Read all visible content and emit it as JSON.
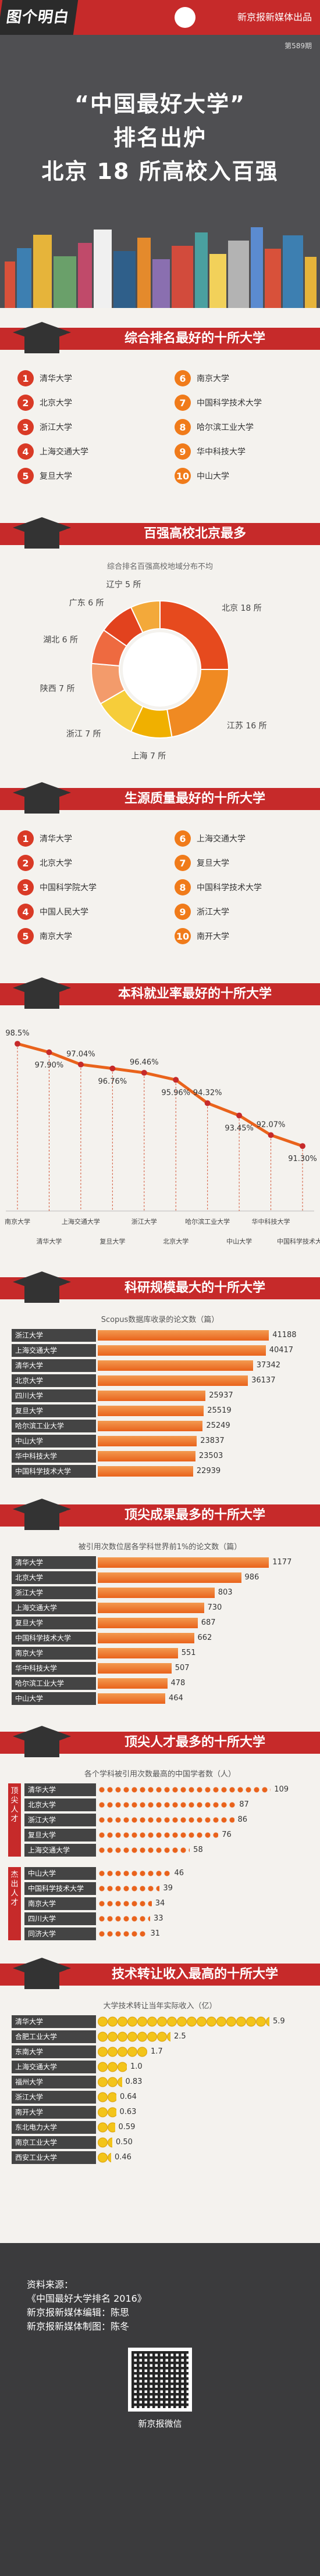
{
  "header": {
    "brand": "图个明白",
    "publisher": "新京报新媒体出品",
    "issue": "第589期"
  },
  "hero": {
    "line1": "“中国最好大学”",
    "line2": "排名出炉",
    "line3": "北京 18 所高校入百强"
  },
  "colors": {
    "red": "#c62a2a",
    "orange": "#e9631c",
    "dark": "#444444",
    "gold": "#f3c41a"
  },
  "sections": {
    "s1": {
      "title": "综合排名最好的十所大学",
      "items": [
        "清华大学",
        "北京大学",
        "浙江大学",
        "上海交通大学",
        "复旦大学",
        "南京大学",
        "中国科学技术大学",
        "哈尔滨工业大学",
        "华中科技大学",
        "中山大学"
      ]
    },
    "s2": {
      "title": "百强高校北京最多"
    },
    "s3": {
      "title": "生源质量最好的十所大学",
      "items": [
        "清华大学",
        "北京大学",
        "中国科学院大学",
        "中国人民大学",
        "南京大学",
        "上海交通大学",
        "复旦大学",
        "中国科学技术大学",
        "浙江大学",
        "南开大学"
      ]
    },
    "s4": {
      "title": "本科就业率最好的十所大学"
    },
    "s5": {
      "title": "科研规模最大的十所大学"
    },
    "s6": {
      "title": "顶尖成果最多的十所大学"
    },
    "s7": {
      "title": "顶尖人才最多的十所大学"
    },
    "s8": {
      "title": "技术转让收入最高的十所大学"
    }
  },
  "chart_data": [
    {
      "type": "pie",
      "title": "综合排名百强高校地域分布不均",
      "categories": [
        "北京",
        "江苏",
        "上海",
        "浙江",
        "陕西",
        "湖北",
        "广东",
        "辽宁"
      ],
      "values": [
        18,
        16,
        7,
        7,
        7,
        6,
        6,
        5
      ],
      "labels": [
        "北京 18 所",
        "江苏 16 所",
        "上海 7 所",
        "浙江 7 所",
        "陕西 7 所",
        "湖北 6 所",
        "广东 6 所",
        "辽宁 5 所"
      ],
      "colors": [
        "#e64a1e",
        "#f08a22",
        "#f0b000",
        "#f6cd3a",
        "#f39b6b",
        "#ee6a40",
        "#e2421e",
        "#f3a93a"
      ]
    },
    {
      "type": "line",
      "categories": [
        "南京大学",
        "清华大学",
        "上海交通大学",
        "复旦大学",
        "浙江大学",
        "北京大学",
        "哈尔滨工业大学",
        "中山大学",
        "华中科技大学",
        "中国科学技术大学"
      ],
      "values": [
        98.5,
        97.9,
        97.04,
        96.76,
        96.46,
        95.96,
        94.32,
        93.45,
        92.07,
        91.3
      ],
      "labels": [
        "98.5%",
        "97.90%",
        "97.04%",
        "96.76%",
        "96.46%",
        "95.96%",
        "94.32%",
        "93.45%",
        "92.07%",
        "91.30%"
      ],
      "ylim": [
        90,
        99
      ]
    },
    {
      "type": "bar",
      "title": "Scopus数据库收录的论文数（篇）",
      "categories": [
        "浙江大学",
        "上海交通大学",
        "清华大学",
        "北京大学",
        "四川大学",
        "复旦大学",
        "哈尔滨工业大学",
        "中山大学",
        "华中科技大学",
        "中国科学技术大学"
      ],
      "values": [
        41188,
        40417,
        37342,
        36137,
        25937,
        25519,
        25249,
        23837,
        23503,
        22939
      ],
      "xlim": [
        0,
        42000
      ]
    },
    {
      "type": "bar",
      "title": "被引用次数位居各学科世界前1%的论文数（篇）",
      "categories": [
        "清华大学",
        "北京大学",
        "浙江大学",
        "上海交通大学",
        "复旦大学",
        "中国科学技术大学",
        "南京大学",
        "华中科技大学",
        "哈尔滨工业大学",
        "中山大学"
      ],
      "values": [
        1177,
        986,
        803,
        730,
        687,
        662,
        551,
        507,
        478,
        464
      ],
      "xlim": [
        0,
        1200
      ]
    },
    {
      "type": "bar",
      "title": "各个学科被引用次数最高的中国学者数（人）",
      "groups": [
        {
          "label": "顶尖人才",
          "categories": [
            "清华大学",
            "北京大学",
            "浙江大学",
            "复旦大学",
            "上海交通大学"
          ],
          "values": [
            109,
            87,
            86,
            76,
            58
          ]
        },
        {
          "label": "杰出人才",
          "categories": [
            "中山大学",
            "中国科学技术大学",
            "南京大学",
            "四川大学",
            "同济大学"
          ],
          "values": [
            46,
            39,
            34,
            33,
            31
          ]
        }
      ],
      "xlim": [
        0,
        110
      ]
    },
    {
      "type": "bar",
      "title": "大学技术转让当年实际收入（亿）",
      "categories": [
        "清华大学",
        "合肥工业大学",
        "东南大学",
        "上海交通大学",
        "福州大学",
        "浙江大学",
        "南开大学",
        "东北电力大学",
        "南京工业大学",
        "西安工业大学"
      ],
      "values": [
        5.9,
        2.5,
        1.7,
        1.0,
        0.83,
        0.64,
        0.63,
        0.59,
        0.5,
        0.46
      ],
      "labels": [
        "5.9",
        "2.5",
        "1.7",
        "1.0",
        "0.83",
        "0.64",
        "0.63",
        "0.59",
        "0.50",
        "0.46"
      ],
      "xlim": [
        0,
        6
      ]
    }
  ],
  "footer": {
    "source_label": "资料来源：",
    "source": "《中国最好大学排名 2016》",
    "editor": "新京报新媒体编辑：陈思",
    "maker": "新京报新媒体制图：陈冬",
    "qr_label": "新京报微信"
  }
}
